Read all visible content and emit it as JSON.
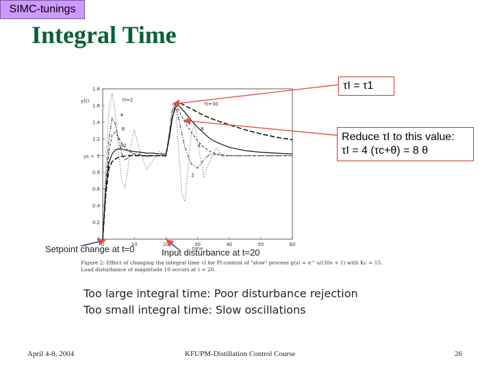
{
  "slide": {
    "tag": "SIMC-tunings",
    "title": "Integral Time",
    "callout1": "τI = τ1",
    "callout2_line1": "Reduce τI to this value:",
    "callout2_line2": "τI = 4 (τc+θ) = 8 θ",
    "note_setpoint": "Setpoint change at t=0",
    "note_disturbance": "Input disturbance at t=20",
    "caption_line1": "Figure 2: Effect of changing the integral time τI for PI-control of \"slow\" process g(s) = e^-s/(30s + 1) with Kc = 15.",
    "caption_line2": "Load disturbance of magnitude 10 occurs at t = 20.",
    "summary_line1": "Too large integral time:  Poor disturbance rejection",
    "summary_line2": "Too small integral time:  Slow oscillations",
    "footer_left": "April 4-8, 2004",
    "footer_center": "KFUPM-Distillation Control Course",
    "footer_right": "26"
  },
  "colors": {
    "title": "#0b5e3a",
    "tag_bg": "#cc99ff",
    "callout_border": "#c0392b",
    "arrow": "#d9534f"
  },
  "chart_data": {
    "type": "line",
    "ylabel": "y(t)",
    "xlabel": "time",
    "xlim": [
      0,
      60
    ],
    "ylim": [
      0,
      1.8
    ],
    "xticks": [
      0,
      10,
      20,
      30,
      40,
      50,
      60
    ],
    "yticks": [
      0,
      0.2,
      0.4,
      0.6,
      0.8,
      1,
      1.2,
      1.4,
      1.6,
      1.8
    ],
    "ys_label": "ys",
    "series": [
      {
        "name": "τI=2",
        "style": "dotted",
        "label": "2",
        "x": [
          0,
          1,
          2,
          3,
          4,
          5,
          6,
          7,
          8,
          9,
          10,
          12,
          14,
          16,
          18,
          20,
          21,
          22,
          23,
          24,
          25,
          26,
          27,
          28,
          29,
          30,
          32,
          34,
          36,
          38,
          40,
          45,
          50,
          55,
          60
        ],
        "y": [
          0,
          0.9,
          1.55,
          1.75,
          1.5,
          1.05,
          0.7,
          0.62,
          0.85,
          1.15,
          1.3,
          1.02,
          0.84,
          0.95,
          1.05,
          0.98,
          1.25,
          1.55,
          1.6,
          1.1,
          0.55,
          0.45,
          0.85,
          1.25,
          1.4,
          1.15,
          0.75,
          0.95,
          1.1,
          0.98,
          1.0,
          1.0,
          1.0,
          1.0,
          1.0
        ]
      },
      {
        "name": "τI=4",
        "style": "dashdot",
        "label": "4",
        "x": [
          0,
          1,
          2,
          3,
          4,
          5,
          6,
          7,
          8,
          10,
          12,
          14,
          16,
          18,
          20,
          21,
          22,
          23,
          24,
          26,
          28,
          30,
          32,
          34,
          36,
          40,
          45,
          50,
          55,
          60
        ],
        "y": [
          0,
          0.7,
          1.2,
          1.45,
          1.38,
          1.2,
          1.02,
          0.95,
          0.97,
          1.03,
          1.01,
          0.99,
          1.0,
          1.0,
          1.0,
          1.25,
          1.55,
          1.62,
          1.45,
          1.1,
          0.9,
          0.85,
          0.95,
          1.02,
          1.01,
          1.0,
          1.0,
          1.0,
          1.0,
          1.0
        ]
      },
      {
        "name": "τI=8",
        "style": "dashed",
        "label": "8",
        "x": [
          0,
          1,
          2,
          3,
          4,
          5,
          6,
          7,
          8,
          10,
          12,
          14,
          16,
          18,
          20,
          21,
          22,
          23,
          24,
          26,
          28,
          30,
          32,
          34,
          36,
          40,
          45,
          50,
          55,
          60
        ],
        "y": [
          0,
          0.6,
          1.05,
          1.25,
          1.28,
          1.22,
          1.15,
          1.1,
          1.06,
          1.02,
          1.0,
          1.0,
          1.0,
          1.0,
          1.0,
          1.2,
          1.45,
          1.58,
          1.55,
          1.4,
          1.28,
          1.18,
          1.1,
          1.05,
          1.02,
          1.0,
          1.0,
          1.0,
          1.0,
          1.0
        ]
      },
      {
        "name": "τI=30",
        "style": "solid",
        "label": "30",
        "x": [
          0,
          1,
          2,
          3,
          4,
          5,
          6,
          7,
          8,
          10,
          12,
          14,
          16,
          18,
          20,
          21,
          22,
          23,
          24,
          26,
          28,
          30,
          32,
          34,
          36,
          40,
          45,
          50,
          55,
          60
        ],
        "y": [
          0,
          0.6,
          0.92,
          1.02,
          1.07,
          1.08,
          1.08,
          1.07,
          1.06,
          1.05,
          1.04,
          1.03,
          1.03,
          1.02,
          1.02,
          1.2,
          1.45,
          1.58,
          1.6,
          1.52,
          1.42,
          1.34,
          1.27,
          1.2,
          1.16,
          1.1,
          1.06,
          1.04,
          1.03,
          1.02
        ]
      },
      {
        "name": "τI=30 (τI=τ1)",
        "style": "heavy-dashed",
        "label": "τI=30",
        "x": [
          0,
          1,
          2,
          3,
          4,
          5,
          6,
          8,
          10,
          15,
          20,
          21,
          22,
          23,
          24,
          26,
          28,
          30,
          32,
          34,
          36,
          40,
          45,
          50,
          55,
          60
        ],
        "y": [
          0,
          0.55,
          0.85,
          0.93,
          0.96,
          0.98,
          0.99,
          1.0,
          1.0,
          1.0,
          1.0,
          1.2,
          1.45,
          1.6,
          1.64,
          1.6,
          1.56,
          1.52,
          1.48,
          1.45,
          1.42,
          1.37,
          1.31,
          1.26,
          1.22,
          1.19
        ]
      }
    ],
    "labels": [
      {
        "text": "τI=2",
        "x": 6,
        "y": 1.65
      },
      {
        "text": "4",
        "x": 5.5,
        "y": 1.47
      },
      {
        "text": "8",
        "x": 6,
        "y": 1.3
      },
      {
        "text": "30",
        "x": 5.5,
        "y": 1.1
      },
      {
        "text": "τI=30",
        "x": 32,
        "y": 1.6
      },
      {
        "text": "8",
        "x": 31,
        "y": 1.3
      },
      {
        "text": "4",
        "x": 30,
        "y": 1.1
      },
      {
        "text": "2",
        "x": 28,
        "y": 0.75
      }
    ]
  }
}
